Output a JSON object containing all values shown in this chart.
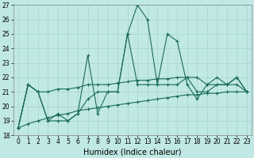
{
  "xlabel": "Humidex (Indice chaleur)",
  "x": [
    0,
    1,
    2,
    3,
    4,
    5,
    6,
    7,
    8,
    9,
    10,
    11,
    12,
    13,
    14,
    15,
    16,
    17,
    18,
    19,
    20,
    21,
    22,
    23
  ],
  "line1": [
    18.5,
    21.5,
    21.0,
    19.0,
    19.5,
    19.0,
    19.5,
    20.5,
    21.0,
    21.0,
    21.0,
    25.0,
    27.0,
    26.0,
    21.5,
    25.0,
    24.5,
    21.5,
    20.5,
    21.5,
    22.0,
    21.5,
    21.5,
    21.0
  ],
  "line2": [
    18.5,
    21.5,
    21.0,
    19.0,
    19.0,
    19.0,
    19.5,
    23.5,
    19.5,
    21.0,
    21.0,
    25.0,
    21.5,
    21.5,
    21.5,
    21.5,
    21.5,
    22.0,
    21.0,
    21.0,
    21.5,
    21.5,
    22.0,
    21.0
  ],
  "line3": [
    18.5,
    21.5,
    21.0,
    21.0,
    21.2,
    21.2,
    21.3,
    21.5,
    21.5,
    21.5,
    21.6,
    21.7,
    21.8,
    21.8,
    21.9,
    21.9,
    22.0,
    22.0,
    22.0,
    21.5,
    21.5,
    21.5,
    22.0,
    21.0
  ],
  "line4": [
    18.5,
    18.8,
    19.0,
    19.2,
    19.4,
    19.5,
    19.7,
    19.8,
    19.9,
    20.0,
    20.1,
    20.2,
    20.3,
    20.4,
    20.5,
    20.6,
    20.7,
    20.8,
    20.8,
    20.9,
    20.9,
    21.0,
    21.0,
    21.0
  ],
  "color": "#1a6b5a",
  "bg_color": "#c0e8e4",
  "grid_color": "#a8d4d0",
  "ylim": [
    18,
    27
  ],
  "yticks": [
    18,
    19,
    20,
    21,
    22,
    23,
    24,
    25,
    26,
    27
  ],
  "xticks": [
    0,
    1,
    2,
    3,
    4,
    5,
    6,
    7,
    8,
    9,
    10,
    11,
    12,
    13,
    14,
    15,
    16,
    17,
    18,
    19,
    20,
    21,
    22,
    23
  ],
  "marker": "+",
  "markersize": 3,
  "linewidth": 0.8,
  "xlabel_fontsize": 7,
  "tick_fontsize": 5.5
}
